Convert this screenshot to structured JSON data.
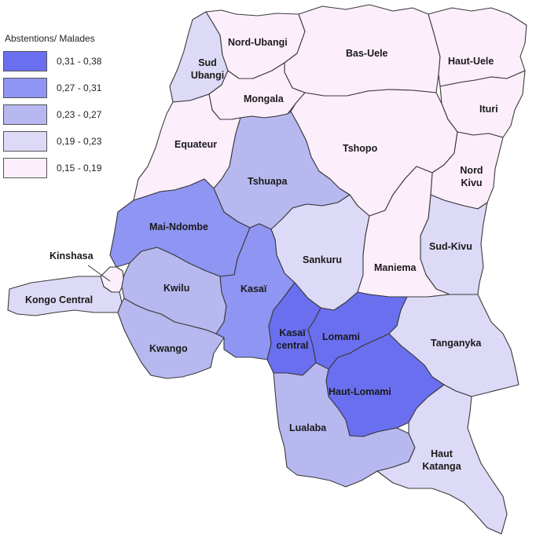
{
  "legend": {
    "title": "Abstentions/ Malades",
    "classes": [
      {
        "label": "0,31 - 0,38",
        "color": "#6a6ff0"
      },
      {
        "label": "0,27 - 0,31",
        "color": "#8f95f2"
      },
      {
        "label": "0,23 - 0,27",
        "color": "#b8b8f0"
      },
      {
        "label": "0,19 - 0,23",
        "color": "#dcdaf6"
      },
      {
        "label": "0,15 - 0,19",
        "color": "#fdeefc"
      }
    ]
  },
  "provinces": [
    {
      "name": "Nord-Ubangi",
      "class": 4
    },
    {
      "name": "Sud Ubangi",
      "class": 3
    },
    {
      "name": "Bas-Uele",
      "class": 4
    },
    {
      "name": "Haut-Uele",
      "class": 4
    },
    {
      "name": "Mongala",
      "class": 4
    },
    {
      "name": "Ituri",
      "class": 4
    },
    {
      "name": "Equateur",
      "class": 4
    },
    {
      "name": "Tshopo",
      "class": 4
    },
    {
      "name": "Nord Kivu",
      "class": 4
    },
    {
      "name": "Tshuapa",
      "class": 2
    },
    {
      "name": "Mai-Ndombe",
      "class": 1
    },
    {
      "name": "Sankuru",
      "class": 3
    },
    {
      "name": "Sud-Kivu",
      "class": 3
    },
    {
      "name": "Maniema",
      "class": 4
    },
    {
      "name": "Kinshasa",
      "class": 4
    },
    {
      "name": "Kongo Central",
      "class": 3
    },
    {
      "name": "Kwilu",
      "class": 2
    },
    {
      "name": "Kasaï",
      "class": 1
    },
    {
      "name": "Kasaï central",
      "class": 0
    },
    {
      "name": "Lomami",
      "class": 0
    },
    {
      "name": "Tanganyka",
      "class": 3
    },
    {
      "name": "Kwango",
      "class": 2
    },
    {
      "name": "Haut-Lomami",
      "class": 0
    },
    {
      "name": "Lualaba",
      "class": 2
    },
    {
      "name": "Haut Katanga",
      "class": 3
    }
  ]
}
